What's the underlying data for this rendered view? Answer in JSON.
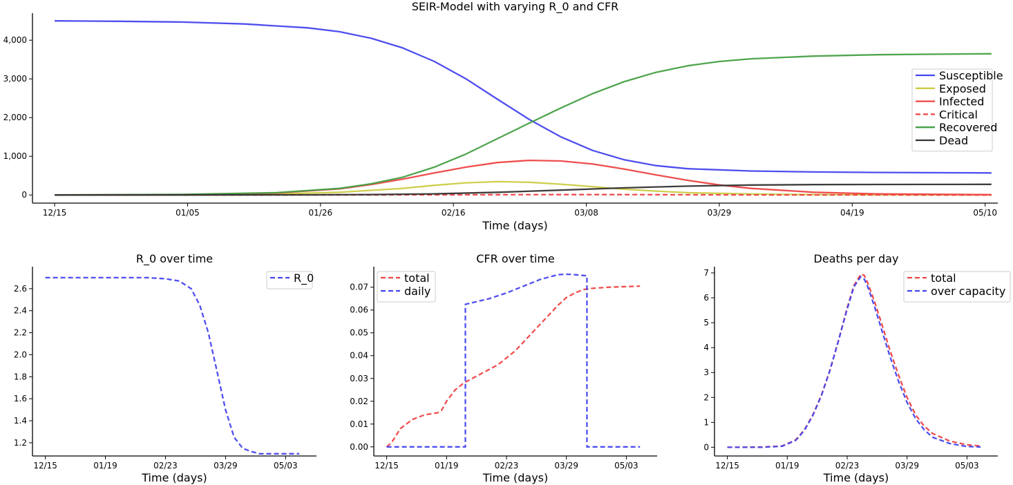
{
  "chart_data": [
    {
      "type": "line",
      "title": "SEIR-Model with varying R_0 and CFR",
      "xlabel": "Time (days)",
      "ylabel": "",
      "x_domain": [
        -3.5,
        149
      ],
      "xlim_dates": [
        "12/11",
        "05/13"
      ],
      "ylim": [
        -210,
        4700
      ],
      "x_ticks": [
        {
          "x": 0,
          "label": "12/15"
        },
        {
          "x": 21,
          "label": "01/05"
        },
        {
          "x": 42,
          "label": "01/26"
        },
        {
          "x": 63,
          "label": "02/16"
        },
        {
          "x": 84,
          "label": "03/08"
        },
        {
          "x": 105,
          "label": "03/29"
        },
        {
          "x": 126,
          "label": "04/19"
        },
        {
          "x": 147,
          "label": "05/10"
        }
      ],
      "y_ticks": [
        {
          "y": 0,
          "label": "0"
        },
        {
          "y": 1000,
          "label": "1,000"
        },
        {
          "y": 2000,
          "label": "2,000"
        },
        {
          "y": 3000,
          "label": "3,000"
        },
        {
          "y": 4000,
          "label": "4,000"
        }
      ],
      "grid": false,
      "legend": {
        "position": "right",
        "entries": [
          "Susceptible",
          "Exposed",
          "Infected",
          "Critical",
          "Recovered",
          "Dead"
        ]
      },
      "series": [
        {
          "name": "Susceptible",
          "color": "#4444ee",
          "dash": false,
          "x": [
            0,
            10,
            20,
            30,
            40,
            45,
            50,
            55,
            60,
            65,
            70,
            75,
            80,
            85,
            90,
            95,
            100,
            110,
            120,
            130,
            140,
            148
          ],
          "y": [
            4500,
            4490,
            4470,
            4420,
            4320,
            4220,
            4050,
            3800,
            3450,
            3000,
            2470,
            1950,
            1500,
            1150,
            910,
            760,
            680,
            620,
            595,
            582,
            575,
            570
          ]
        },
        {
          "name": "Exposed",
          "color": "#cccc44",
          "dash": false,
          "x": [
            0,
            20,
            35,
            45,
            55,
            60,
            65,
            70,
            75,
            80,
            85,
            90,
            95,
            100,
            110,
            120,
            130,
            148
          ],
          "y": [
            0,
            5,
            25,
            70,
            170,
            250,
            315,
            345,
            330,
            280,
            215,
            150,
            100,
            60,
            25,
            10,
            5,
            2
          ]
        },
        {
          "name": "Infected",
          "color": "#ee4444",
          "dash": false,
          "x": [
            0,
            20,
            35,
            45,
            50,
            55,
            60,
            65,
            70,
            75,
            80,
            85,
            90,
            95,
            100,
            105,
            110,
            120,
            130,
            148
          ],
          "y": [
            0,
            10,
            50,
            160,
            270,
            410,
            570,
            720,
            840,
            895,
            880,
            800,
            670,
            520,
            380,
            260,
            170,
            70,
            30,
            8
          ]
        },
        {
          "name": "Critical",
          "color": "#ee4444",
          "dash": true,
          "x": [
            0,
            40,
            60,
            70,
            80,
            90,
            100,
            110,
            148
          ],
          "y": [
            0,
            2,
            5,
            8,
            10,
            9,
            6,
            3,
            1
          ]
        },
        {
          "name": "Recovered",
          "color": "#44a044",
          "dash": false,
          "x": [
            0,
            20,
            35,
            45,
            50,
            55,
            60,
            65,
            70,
            75,
            80,
            85,
            90,
            95,
            100,
            105,
            110,
            120,
            130,
            140,
            148
          ],
          "y": [
            0,
            15,
            60,
            170,
            290,
            460,
            720,
            1060,
            1460,
            1860,
            2250,
            2620,
            2930,
            3170,
            3340,
            3450,
            3520,
            3590,
            3625,
            3640,
            3650
          ]
        },
        {
          "name": "Dead",
          "color": "#333333",
          "dash": false,
          "x": [
            0,
            20,
            40,
            50,
            60,
            70,
            80,
            90,
            100,
            110,
            120,
            130,
            148
          ],
          "y": [
            0,
            0,
            5,
            12,
            30,
            70,
            125,
            185,
            230,
            258,
            268,
            272,
            275
          ]
        }
      ]
    },
    {
      "type": "line",
      "title": "R_0 over time",
      "xlabel": "Time (days)",
      "ylabel": "",
      "x_domain": [
        -7.5,
        158
      ],
      "xlim_dates": [
        "12/07",
        "05/22"
      ],
      "ylim": [
        1.08,
        2.8
      ],
      "x_ticks": [
        {
          "x": 0,
          "label": "12/15"
        },
        {
          "x": 35,
          "label": "01/19"
        },
        {
          "x": 70,
          "label": "02/23"
        },
        {
          "x": 105,
          "label": "03/29"
        },
        {
          "x": 140,
          "label": "05/03"
        }
      ],
      "y_ticks": [
        {
          "y": 1.2,
          "label": "1.2"
        },
        {
          "y": 1.4,
          "label": "1.4"
        },
        {
          "y": 1.6,
          "label": "1.6"
        },
        {
          "y": 1.8,
          "label": "1.8"
        },
        {
          "y": 2.0,
          "label": "2.0"
        },
        {
          "y": 2.2,
          "label": "2.2"
        },
        {
          "y": 2.4,
          "label": "2.4"
        },
        {
          "y": 2.6,
          "label": "2.6"
        }
      ],
      "grid": false,
      "legend": {
        "position": "top-right",
        "entries": [
          "R_0"
        ]
      },
      "series": [
        {
          "name": "R_0",
          "color": "#4444ee",
          "dash": true,
          "x": [
            0,
            40,
            60,
            70,
            78,
            85,
            90,
            95,
            100,
            105,
            110,
            115,
            120,
            125,
            135,
            148
          ],
          "y": [
            2.7,
            2.7,
            2.7,
            2.69,
            2.67,
            2.6,
            2.45,
            2.2,
            1.85,
            1.5,
            1.25,
            1.15,
            1.12,
            1.1,
            1.1,
            1.1
          ]
        }
      ]
    },
    {
      "type": "line",
      "title": "CFR over time",
      "xlabel": "Time (days)",
      "ylabel": "",
      "x_domain": [
        -7.5,
        158
      ],
      "xlim_dates": [
        "12/07",
        "05/22"
      ],
      "ylim": [
        -0.004,
        0.079
      ],
      "x_ticks": [
        {
          "x": 0,
          "label": "12/15"
        },
        {
          "x": 35,
          "label": "01/19"
        },
        {
          "x": 70,
          "label": "02/23"
        },
        {
          "x": 105,
          "label": "03/29"
        },
        {
          "x": 140,
          "label": "05/03"
        }
      ],
      "y_ticks": [
        {
          "y": 0.0,
          "label": "0.00"
        },
        {
          "y": 0.01,
          "label": "0.01"
        },
        {
          "y": 0.02,
          "label": "0.02"
        },
        {
          "y": 0.03,
          "label": "0.03"
        },
        {
          "y": 0.04,
          "label": "0.04"
        },
        {
          "y": 0.05,
          "label": "0.05"
        },
        {
          "y": 0.06,
          "label": "0.06"
        },
        {
          "y": 0.07,
          "label": "0.07"
        }
      ],
      "grid": false,
      "legend": {
        "position": "top-left",
        "entries": [
          "total",
          "daily"
        ]
      },
      "series": [
        {
          "name": "total",
          "color": "#ee4444",
          "dash": true,
          "x": [
            0,
            3,
            8,
            15,
            22,
            30,
            32,
            35,
            40,
            45,
            50,
            55,
            60,
            65,
            70,
            75,
            80,
            85,
            90,
            95,
            100,
            105,
            110,
            115,
            120,
            130,
            148
          ],
          "y": [
            0,
            0.002,
            0.008,
            0.012,
            0.014,
            0.015,
            0.016,
            0.02,
            0.025,
            0.028,
            0.03,
            0.032,
            0.034,
            0.036,
            0.039,
            0.042,
            0.046,
            0.05,
            0.054,
            0.058,
            0.062,
            0.0655,
            0.0675,
            0.069,
            0.0695,
            0.07,
            0.0705
          ]
        },
        {
          "name": "daily",
          "color": "#4444ee",
          "dash": true,
          "x": [
            0,
            46,
            46,
            60,
            70,
            80,
            90,
            100,
            105,
            110,
            117,
            117,
            148
          ],
          "y": [
            0,
            0,
            0.0625,
            0.065,
            0.0675,
            0.0705,
            0.0735,
            0.0755,
            0.0757,
            0.0755,
            0.075,
            0,
            0
          ]
        }
      ]
    },
    {
      "type": "line",
      "title": "Deaths per day",
      "xlabel": "Time (days)",
      "ylabel": "",
      "x_domain": [
        -7.5,
        158
      ],
      "xlim_dates": [
        "12/07",
        "05/22"
      ],
      "ylim": [
        -0.35,
        7.25
      ],
      "x_ticks": [
        {
          "x": 0,
          "label": "12/15"
        },
        {
          "x": 35,
          "label": "01/19"
        },
        {
          "x": 70,
          "label": "02/23"
        },
        {
          "x": 105,
          "label": "03/29"
        },
        {
          "x": 140,
          "label": "05/03"
        }
      ],
      "y_ticks": [
        {
          "y": 0,
          "label": "0"
        },
        {
          "y": 1,
          "label": "1"
        },
        {
          "y": 2,
          "label": "2"
        },
        {
          "y": 3,
          "label": "3"
        },
        {
          "y": 4,
          "label": "4"
        },
        {
          "y": 5,
          "label": "5"
        },
        {
          "y": 6,
          "label": "6"
        },
        {
          "y": 7,
          "label": "7"
        }
      ],
      "grid": false,
      "legend": {
        "position": "top-right",
        "entries": [
          "total",
          "over capacity"
        ]
      },
      "series": [
        {
          "name": "total",
          "color": "#ee4444",
          "dash": true,
          "x": [
            0,
            20,
            32,
            40,
            45,
            50,
            55,
            60,
            65,
            70,
            74,
            78,
            80,
            82,
            86,
            90,
            95,
            100,
            105,
            110,
            115,
            120,
            130,
            140,
            148
          ],
          "y": [
            0,
            0.01,
            0.05,
            0.3,
            0.7,
            1.3,
            2.1,
            3.1,
            4.3,
            5.6,
            6.5,
            6.95,
            6.9,
            6.6,
            5.85,
            5.0,
            3.9,
            2.9,
            2.0,
            1.3,
            0.85,
            0.55,
            0.25,
            0.1,
            0.05
          ]
        },
        {
          "name": "over capacity",
          "color": "#4444ee",
          "dash": true,
          "x": [
            0,
            20,
            32,
            40,
            45,
            50,
            55,
            60,
            65,
            70,
            74,
            78,
            80,
            82,
            86,
            90,
            95,
            100,
            105,
            110,
            115,
            120,
            130,
            140,
            148
          ],
          "y": [
            0,
            0,
            0.04,
            0.28,
            0.68,
            1.28,
            2.08,
            3.1,
            4.3,
            5.55,
            6.45,
            6.85,
            6.75,
            6.45,
            5.65,
            4.75,
            3.65,
            2.65,
            1.8,
            1.15,
            0.7,
            0.4,
            0.15,
            0.03,
            0.01
          ]
        }
      ]
    }
  ]
}
